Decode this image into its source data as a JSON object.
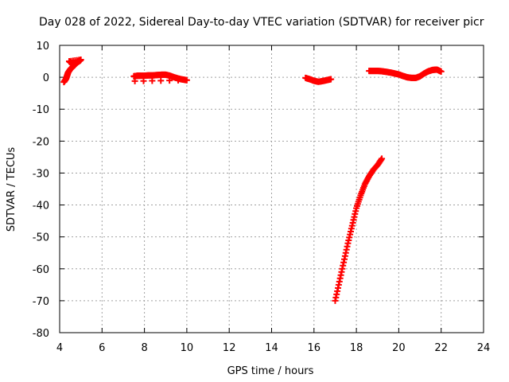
{
  "chart_data": {
    "type": "scatter",
    "title": "Day 028 of 2022, Sidereal Day-to-day VTEC variation (SDTVAR) for receiver picr",
    "xlabel": "GPS time / hours",
    "ylabel": "SDTVAR / TECUs",
    "xlim": [
      4,
      24
    ],
    "ylim": [
      -80,
      10
    ],
    "xticks": [
      4,
      6,
      8,
      10,
      12,
      14,
      16,
      18,
      20,
      22,
      24
    ],
    "yticks": [
      -80,
      -70,
      -60,
      -50,
      -40,
      -30,
      -20,
      -10,
      0,
      10
    ],
    "grid": true,
    "marker": "+",
    "color": "#ff0000",
    "series": [
      {
        "x": [
          4.2,
          4.3,
          4.35,
          4.4,
          4.5,
          4.6,
          4.7,
          4.75,
          4.8,
          4.85,
          4.9,
          4.95,
          5.0,
          4.45,
          4.55
        ],
        "y": [
          -1.5,
          -0.5,
          0.5,
          1.5,
          2.5,
          3.2,
          3.8,
          4.2,
          4.6,
          4.8,
          5.0,
          5.2,
          5.5,
          5.0,
          4.5
        ]
      },
      {
        "x": [
          7.5,
          7.6,
          7.7,
          7.8,
          8.0,
          8.2,
          8.4,
          8.6,
          8.8,
          9.0,
          9.2,
          9.4,
          9.6,
          9.8,
          10.0,
          7.55
        ],
        "y": [
          0.3,
          0.4,
          0.5,
          0.5,
          0.5,
          0.6,
          0.6,
          0.7,
          0.8,
          0.8,
          0.5,
          0.0,
          -0.4,
          -0.7,
          -0.9,
          -1.2
        ]
      },
      {
        "x": [
          15.6,
          15.8,
          16.0,
          16.2,
          16.4,
          16.6,
          16.8
        ],
        "y": [
          -0.2,
          -0.6,
          -1.1,
          -1.4,
          -1.2,
          -0.9,
          -0.6
        ]
      },
      {
        "x": [
          17.0,
          17.2,
          17.4,
          17.6,
          17.8,
          18.0,
          18.2,
          18.4,
          18.6,
          18.8,
          19.0,
          19.2
        ],
        "y": [
          -70.0,
          -64.0,
          -58.0,
          -52.0,
          -46.5,
          -41.0,
          -37.0,
          -33.5,
          -31.0,
          -29.0,
          -27.5,
          -25.5
        ]
      },
      {
        "x": [
          18.6,
          18.8,
          19.0,
          19.2,
          19.4,
          19.6,
          19.8,
          20.0,
          20.2,
          20.4,
          20.6,
          20.8,
          21.0,
          21.2,
          21.4,
          21.6,
          21.8,
          22.0
        ],
        "y": [
          2.0,
          2.0,
          2.0,
          1.9,
          1.7,
          1.5,
          1.2,
          0.9,
          0.4,
          0.0,
          -0.2,
          -0.2,
          0.3,
          1.2,
          1.9,
          2.3,
          2.4,
          1.8
        ]
      }
    ]
  }
}
